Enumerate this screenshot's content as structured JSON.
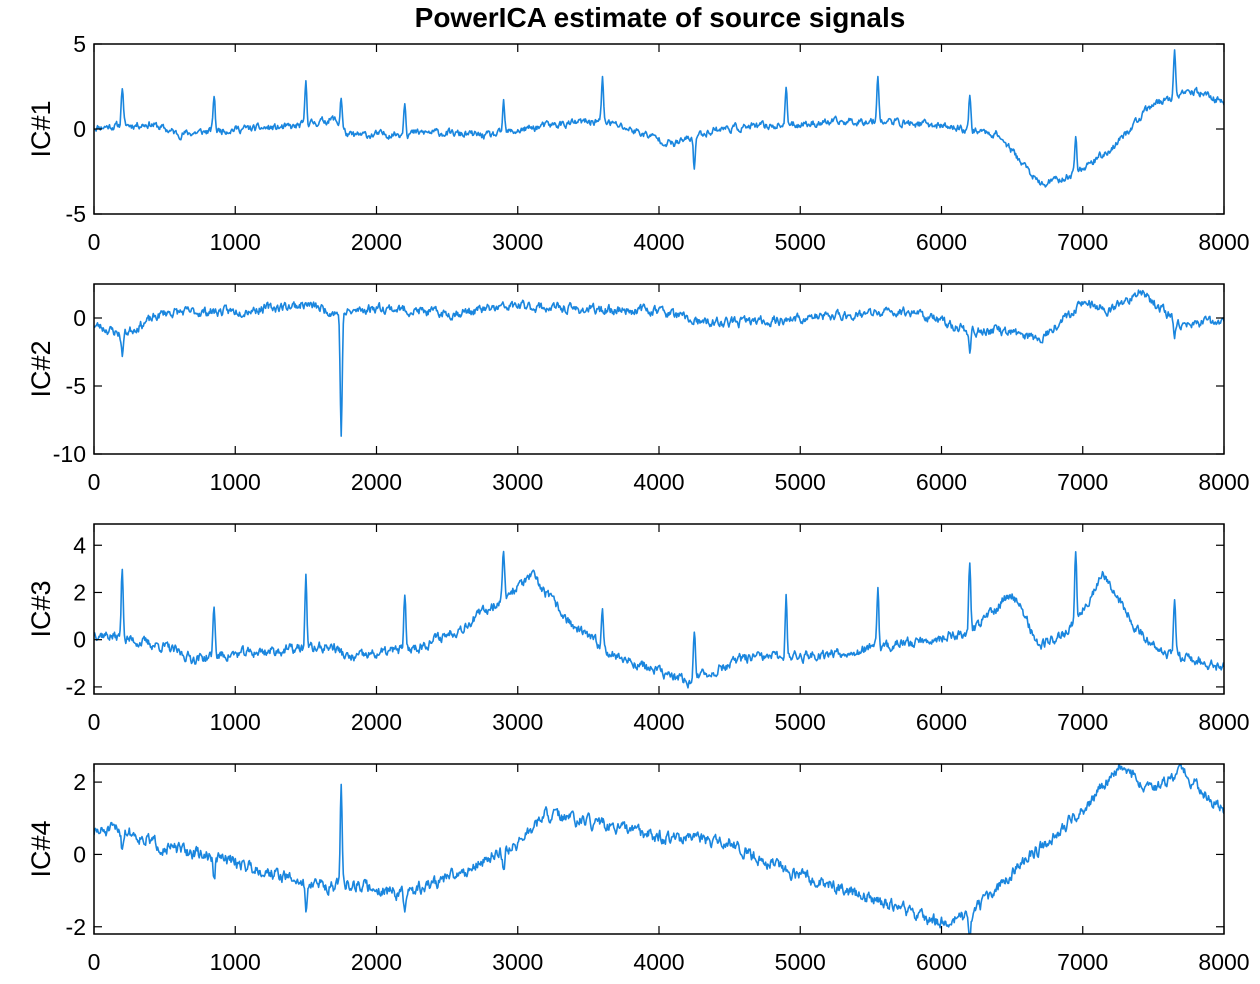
{
  "title": "PowerICA estimate of source signals",
  "colors": {
    "signal": "#1a86de",
    "axes": "#000000",
    "background": "#ffffff"
  },
  "chart_data": [
    {
      "type": "line",
      "ylabel": "IC#1",
      "xlim": [
        0,
        8000
      ],
      "ylim": [
        -5,
        5
      ],
      "xticks": [
        0,
        1000,
        2000,
        3000,
        4000,
        5000,
        6000,
        7000,
        8000
      ],
      "yticks": [
        -5,
        0,
        5
      ],
      "grid": false,
      "baseline": [
        [
          0,
          0.1
        ],
        [
          400,
          0.3
        ],
        [
          600,
          -0.3
        ],
        [
          1000,
          0
        ],
        [
          1400,
          0.1
        ],
        [
          1700,
          0.6
        ],
        [
          1800,
          -0.4
        ],
        [
          2400,
          -0.2
        ],
        [
          2800,
          -0.4
        ],
        [
          3200,
          0.2
        ],
        [
          3600,
          0.5
        ],
        [
          3900,
          -0.3
        ],
        [
          4100,
          -0.9
        ],
        [
          4400,
          0
        ],
        [
          5000,
          0.3
        ],
        [
          5500,
          0.5
        ],
        [
          6000,
          0.2
        ],
        [
          6400,
          -0.3
        ],
        [
          6700,
          -3.3
        ],
        [
          6900,
          -2.8
        ],
        [
          7200,
          -1.2
        ],
        [
          7500,
          1.5
        ],
        [
          7800,
          2.2
        ],
        [
          8000,
          1.6
        ]
      ],
      "spikes": [
        [
          200,
          2.3
        ],
        [
          850,
          2.1
        ],
        [
          1500,
          2.5
        ],
        [
          1750,
          1.8
        ],
        [
          2200,
          2.0
        ],
        [
          2900,
          1.8
        ],
        [
          3600,
          2.4
        ],
        [
          4250,
          -1.8
        ],
        [
          4900,
          2.0
        ],
        [
          5550,
          2.8
        ],
        [
          6200,
          2.0
        ],
        [
          6950,
          2.1
        ],
        [
          7650,
          2.7
        ]
      ],
      "noise": 0.35,
      "seed": 11
    },
    {
      "type": "line",
      "ylabel": "IC#2",
      "xlim": [
        0,
        8000
      ],
      "ylim": [
        -10,
        2.5
      ],
      "xticks": [
        0,
        1000,
        2000,
        3000,
        4000,
        5000,
        6000,
        7000,
        8000
      ],
      "yticks": [
        -10,
        -5,
        0
      ],
      "grid": false,
      "baseline": [
        [
          0,
          -0.5
        ],
        [
          200,
          -1.2
        ],
        [
          500,
          0.4
        ],
        [
          1000,
          0.5
        ],
        [
          1500,
          1.0
        ],
        [
          1750,
          0.3
        ],
        [
          2000,
          0.8
        ],
        [
          2500,
          0.3
        ],
        [
          3000,
          0.9
        ],
        [
          3500,
          0.6
        ],
        [
          4000,
          0.6
        ],
        [
          4300,
          -0.4
        ],
        [
          4800,
          -0.2
        ],
        [
          5300,
          0.2
        ],
        [
          5800,
          0.5
        ],
        [
          6200,
          -1.0
        ],
        [
          6400,
          -0.9
        ],
        [
          6700,
          -1.5
        ],
        [
          7000,
          1.2
        ],
        [
          7200,
          0.5
        ],
        [
          7400,
          2.0
        ],
        [
          7700,
          -0.5
        ],
        [
          8000,
          -0.3
        ]
      ],
      "spikes": [
        [
          1750,
          -8.8
        ],
        [
          200,
          -1.5
        ],
        [
          6200,
          -1.5
        ],
        [
          7650,
          -1.3
        ]
      ],
      "noise": 0.55,
      "seed": 23
    },
    {
      "type": "line",
      "ylabel": "IC#3",
      "xlim": [
        0,
        8000
      ],
      "ylim": [
        -2.3,
        4.9
      ],
      "xticks": [
        0,
        1000,
        2000,
        3000,
        4000,
        5000,
        6000,
        7000,
        8000
      ],
      "yticks": [
        -2,
        0,
        2,
        4
      ],
      "grid": false,
      "baseline": [
        [
          0,
          0.3
        ],
        [
          500,
          -0.3
        ],
        [
          700,
          -0.8
        ],
        [
          1200,
          -0.5
        ],
        [
          1700,
          -0.3
        ],
        [
          1800,
          -0.8
        ],
        [
          2300,
          -0.3
        ],
        [
          2600,
          0.5
        ],
        [
          2900,
          1.8
        ],
        [
          3100,
          2.7
        ],
        [
          3400,
          0.5
        ],
        [
          3700,
          -0.7
        ],
        [
          4200,
          -1.8
        ],
        [
          4600,
          -0.8
        ],
        [
          5000,
          -0.7
        ],
        [
          5500,
          -0.4
        ],
        [
          5900,
          0
        ],
        [
          6200,
          0.3
        ],
        [
          6500,
          2.0
        ],
        [
          6700,
          -0.3
        ],
        [
          6900,
          0.4
        ],
        [
          7150,
          2.8
        ],
        [
          7400,
          0.3
        ],
        [
          7600,
          -0.6
        ],
        [
          8000,
          -1.2
        ]
      ],
      "spikes": [
        [
          200,
          2.9
        ],
        [
          850,
          2.2
        ],
        [
          1500,
          3.1
        ],
        [
          2200,
          2.1
        ],
        [
          2900,
          2.0
        ],
        [
          3600,
          1.6
        ],
        [
          4250,
          2.2
        ],
        [
          4900,
          2.6
        ],
        [
          5550,
          2.5
        ],
        [
          6200,
          3.0
        ],
        [
          6950,
          2.9
        ],
        [
          7650,
          2.4
        ]
      ],
      "noise": 0.35,
      "seed": 37
    },
    {
      "type": "line",
      "ylabel": "IC#4",
      "xlim": [
        0,
        8000
      ],
      "ylim": [
        -2.2,
        2.5
      ],
      "xticks": [
        0,
        1000,
        2000,
        3000,
        4000,
        5000,
        6000,
        7000,
        8000
      ],
      "yticks": [
        -2,
        0,
        2
      ],
      "grid": false,
      "baseline": [
        [
          0,
          0.6
        ],
        [
          200,
          0.7
        ],
        [
          500,
          0.2
        ],
        [
          1000,
          -0.2
        ],
        [
          1500,
          -0.8
        ],
        [
          1750,
          -0.9
        ],
        [
          1800,
          -0.8
        ],
        [
          2200,
          -1.1
        ],
        [
          2600,
          -0.5
        ],
        [
          3000,
          0.3
        ],
        [
          3200,
          1.1
        ],
        [
          3600,
          0.8
        ],
        [
          4000,
          0.5
        ],
        [
          4500,
          0.3
        ],
        [
          5000,
          -0.6
        ],
        [
          5500,
          -1.2
        ],
        [
          6000,
          -1.9
        ],
        [
          6200,
          -1.7
        ],
        [
          6500,
          -0.5
        ],
        [
          7000,
          1.2
        ],
        [
          7250,
          2.4
        ],
        [
          7500,
          1.8
        ],
        [
          7700,
          2.3
        ],
        [
          8000,
          1.2
        ]
      ],
      "spikes": [
        [
          1750,
          2.8
        ],
        [
          200,
          -0.5
        ],
        [
          850,
          -0.7
        ],
        [
          1500,
          -0.7
        ],
        [
          2200,
          -0.5
        ],
        [
          2900,
          -0.5
        ],
        [
          6200,
          -0.5
        ]
      ],
      "noise": 0.28,
      "seed": 51
    }
  ]
}
